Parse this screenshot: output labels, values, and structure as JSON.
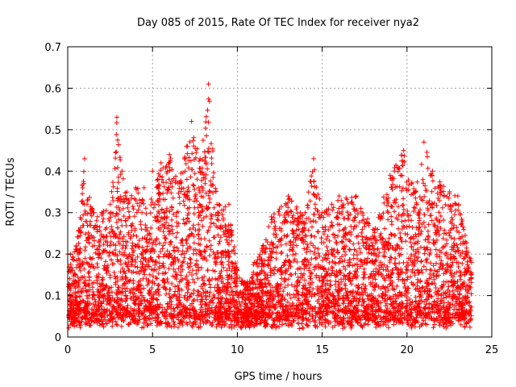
{
  "chart_data": {
    "type": "scatter",
    "title": "Day 085 of 2015, Rate Of TEC Index for receiver nya2",
    "xlabel": "GPS time / hours",
    "ylabel": "ROTI / TECUs",
    "xlim": [
      0,
      25
    ],
    "ylim": [
      0,
      0.7
    ],
    "xticks": [
      0,
      5,
      10,
      15,
      20,
      25
    ],
    "yticks": [
      0,
      0.1,
      0.2,
      0.3,
      0.4,
      0.5,
      0.6,
      0.7
    ],
    "grid": true,
    "marker": "plus",
    "color": "#ff0000",
    "series": [
      {
        "values_approx_envelope": [
          {
            "x": 0.0,
            "y": 0.2
          },
          {
            "x": 0.5,
            "y": 0.22
          },
          {
            "x": 1.0,
            "y": 0.43
          },
          {
            "x": 1.5,
            "y": 0.3
          },
          {
            "x": 2.0,
            "y": 0.3
          },
          {
            "x": 2.5,
            "y": 0.32
          },
          {
            "x": 2.9,
            "y": 0.53
          },
          {
            "x": 3.2,
            "y": 0.4
          },
          {
            "x": 3.6,
            "y": 0.33
          },
          {
            "x": 4.0,
            "y": 0.36
          },
          {
            "x": 4.5,
            "y": 0.36
          },
          {
            "x": 4.8,
            "y": 0.25
          },
          {
            "x": 5.0,
            "y": 0.4
          },
          {
            "x": 5.5,
            "y": 0.42
          },
          {
            "x": 6.0,
            "y": 0.44
          },
          {
            "x": 6.5,
            "y": 0.37
          },
          {
            "x": 7.0,
            "y": 0.46
          },
          {
            "x": 7.3,
            "y": 0.52
          },
          {
            "x": 7.8,
            "y": 0.43
          },
          {
            "x": 8.3,
            "y": 0.61
          },
          {
            "x": 8.8,
            "y": 0.32
          },
          {
            "x": 9.5,
            "y": 0.32
          },
          {
            "x": 10.0,
            "y": 0.16
          },
          {
            "x": 10.5,
            "y": 0.13
          },
          {
            "x": 11.0,
            "y": 0.18
          },
          {
            "x": 11.5,
            "y": 0.22
          },
          {
            "x": 12.0,
            "y": 0.29
          },
          {
            "x": 13.0,
            "y": 0.34
          },
          {
            "x": 14.0,
            "y": 0.3
          },
          {
            "x": 14.5,
            "y": 0.43
          },
          {
            "x": 15.0,
            "y": 0.3
          },
          {
            "x": 16.0,
            "y": 0.34
          },
          {
            "x": 17.0,
            "y": 0.34
          },
          {
            "x": 18.0,
            "y": 0.26
          },
          {
            "x": 19.0,
            "y": 0.39
          },
          {
            "x": 19.8,
            "y": 0.45
          },
          {
            "x": 20.5,
            "y": 0.35
          },
          {
            "x": 21.0,
            "y": 0.47
          },
          {
            "x": 21.5,
            "y": 0.4
          },
          {
            "x": 22.5,
            "y": 0.35
          },
          {
            "x": 23.0,
            "y": 0.34
          },
          {
            "x": 23.8,
            "y": 0.18
          }
        ]
      }
    ]
  }
}
